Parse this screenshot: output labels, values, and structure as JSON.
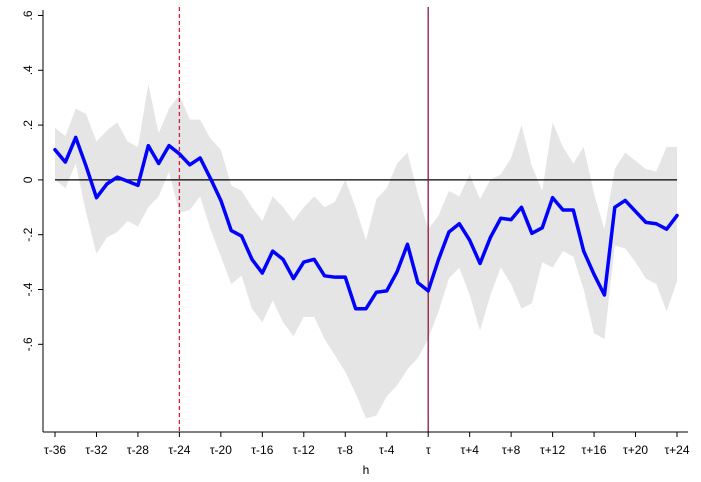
{
  "chart_data": {
    "type": "line",
    "title": "",
    "xlabel": "h",
    "ylabel": "",
    "xlim": [
      -36,
      24
    ],
    "ylim": [
      -0.92,
      0.62
    ],
    "grid": false,
    "legend": "none",
    "yticks": [
      {
        "value": 0.6,
        "label": ".6"
      },
      {
        "value": 0.4,
        "label": ".4"
      },
      {
        "value": 0.2,
        "label": ".2"
      },
      {
        "value": 0.0,
        "label": "0"
      },
      {
        "value": -0.2,
        "label": "-.2"
      },
      {
        "value": -0.4,
        "label": "-.4"
      },
      {
        "value": -0.6,
        "label": "-.6"
      }
    ],
    "xticks": [
      {
        "value": -36,
        "label": "τ-36"
      },
      {
        "value": -32,
        "label": "τ-32"
      },
      {
        "value": -28,
        "label": "τ-28"
      },
      {
        "value": -24,
        "label": "τ-24"
      },
      {
        "value": -20,
        "label": "τ-20"
      },
      {
        "value": -16,
        "label": "τ-16"
      },
      {
        "value": -12,
        "label": "τ-12"
      },
      {
        "value": -8,
        "label": "τ-8"
      },
      {
        "value": -4,
        "label": "τ-4"
      },
      {
        "value": 0,
        "label": "τ"
      },
      {
        "value": 4,
        "label": "τ+4"
      },
      {
        "value": 8,
        "label": "τ+8"
      },
      {
        "value": 12,
        "label": "τ+12"
      },
      {
        "value": 16,
        "label": "τ+16"
      },
      {
        "value": 20,
        "label": "τ+20"
      },
      {
        "value": 24,
        "label": "τ+24"
      }
    ],
    "reference_lines": [
      {
        "axis": "y",
        "value": 0,
        "color": "#000000",
        "style": "solid"
      },
      {
        "axis": "x",
        "value": -24,
        "color": "#d21f3c",
        "style": "dashed"
      },
      {
        "axis": "x",
        "value": 0,
        "color": "#8b1a3a",
        "style": "solid"
      }
    ],
    "x": [
      -36,
      -35,
      -34,
      -33,
      -32,
      -31,
      -30,
      -29,
      -28,
      -27,
      -26,
      -25,
      -24,
      -23,
      -22,
      -21,
      -20,
      -19,
      -18,
      -17,
      -16,
      -15,
      -14,
      -13,
      -12,
      -11,
      -10,
      -9,
      -8,
      -7,
      -6,
      -5,
      -4,
      -3,
      -2,
      -1,
      0,
      1,
      2,
      3,
      4,
      5,
      6,
      7,
      8,
      9,
      10,
      11,
      12,
      13,
      14,
      15,
      16,
      17,
      18,
      19,
      20,
      21,
      22,
      23,
      24
    ],
    "series": [
      {
        "color": "#0000ff",
        "values": [
          0.11,
          0.065,
          0.155,
          0.05,
          -0.065,
          -0.015,
          0.01,
          -0.005,
          -0.02,
          0.125,
          0.06,
          0.125,
          0.095,
          0.055,
          0.08,
          0.005,
          -0.075,
          -0.185,
          -0.205,
          -0.29,
          -0.34,
          -0.26,
          -0.29,
          -0.36,
          -0.3,
          -0.29,
          -0.35,
          -0.355,
          -0.355,
          -0.47,
          -0.47,
          -0.41,
          -0.405,
          -0.335,
          -0.235,
          -0.375,
          -0.405,
          -0.29,
          -0.19,
          -0.16,
          -0.22,
          -0.305,
          -0.21,
          -0.14,
          -0.145,
          -0.1,
          -0.195,
          -0.175,
          -0.065,
          -0.11,
          -0.11,
          -0.26,
          -0.345,
          -0.42,
          -0.1,
          -0.075,
          -0.115,
          -0.155,
          -0.16,
          -0.18,
          -0.13
        ]
      }
    ],
    "band": {
      "color": "#e5e5e5",
      "upper": [
        0.19,
        0.16,
        0.26,
        0.24,
        0.14,
        0.18,
        0.21,
        0.14,
        0.12,
        0.35,
        0.17,
        0.26,
        0.31,
        0.22,
        0.22,
        0.15,
        0.11,
        -0.02,
        -0.04,
        -0.1,
        -0.15,
        -0.06,
        -0.1,
        -0.15,
        -0.1,
        -0.06,
        -0.1,
        -0.08,
        0.0,
        -0.1,
        -0.22,
        -0.07,
        -0.03,
        0.06,
        0.1,
        -0.05,
        -0.18,
        -0.13,
        -0.04,
        -0.06,
        0.02,
        -0.07,
        0.0,
        0.02,
        0.08,
        0.2,
        0.05,
        -0.04,
        0.21,
        0.12,
        0.06,
        0.12,
        -0.05,
        -0.18,
        0.04,
        0.1,
        0.07,
        0.04,
        0.03,
        0.12,
        0.12
      ],
      "lower": [
        0.0,
        -0.03,
        0.06,
        -0.12,
        -0.27,
        -0.21,
        -0.19,
        -0.15,
        -0.17,
        -0.1,
        -0.06,
        0.03,
        -0.12,
        -0.11,
        -0.06,
        -0.18,
        -0.28,
        -0.38,
        -0.35,
        -0.47,
        -0.52,
        -0.44,
        -0.52,
        -0.57,
        -0.5,
        -0.5,
        -0.58,
        -0.64,
        -0.7,
        -0.78,
        -0.87,
        -0.86,
        -0.79,
        -0.75,
        -0.69,
        -0.65,
        -0.58,
        -0.48,
        -0.36,
        -0.32,
        -0.42,
        -0.55,
        -0.42,
        -0.32,
        -0.38,
        -0.47,
        -0.45,
        -0.3,
        -0.32,
        -0.26,
        -0.28,
        -0.4,
        -0.56,
        -0.58,
        -0.24,
        -0.25,
        -0.3,
        -0.36,
        -0.38,
        -0.48,
        -0.37
      ]
    }
  }
}
